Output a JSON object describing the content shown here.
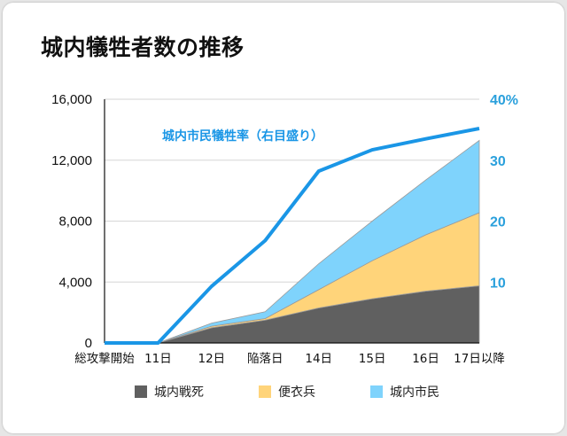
{
  "title": "城内犠牲者数の推移",
  "chart_data": {
    "type": "area",
    "title": "城内犠牲者数の推移",
    "categories": [
      "総攻撃開始",
      "11日",
      "12日",
      "陥落日",
      "14日",
      "15日",
      "16日",
      "17日以降"
    ],
    "ylim": [
      0,
      16000
    ],
    "yticks": [
      "0",
      "4,000",
      "8,000",
      "12,000",
      "16,000"
    ],
    "y2lim": [
      0,
      40
    ],
    "y2ticks": [
      "10",
      "20",
      "30",
      "40%"
    ],
    "series": [
      {
        "name": "城内戦死",
        "color": "#606060",
        "values": [
          0,
          0,
          1000,
          1500,
          2300,
          2900,
          3400,
          3750
        ]
      },
      {
        "name": "便衣兵",
        "color": "#ffd47a",
        "values": [
          0,
          0,
          100,
          100,
          1200,
          2500,
          3700,
          4800
        ]
      },
      {
        "name": "城内市民",
        "color": "#7fd3fc",
        "values": [
          0,
          0,
          200,
          450,
          1700,
          2600,
          3600,
          4750
        ]
      }
    ],
    "line_series": {
      "name": "城内市民犠牲率",
      "axis": "right",
      "color": "#1a96e6",
      "values": [
        0,
        0,
        9.3,
        16.8,
        28.2,
        31.7,
        33.5,
        35.2
      ]
    },
    "annotation": "城内市民犠牲率（右目盛り）",
    "legend_position": "bottom",
    "grid": true
  }
}
